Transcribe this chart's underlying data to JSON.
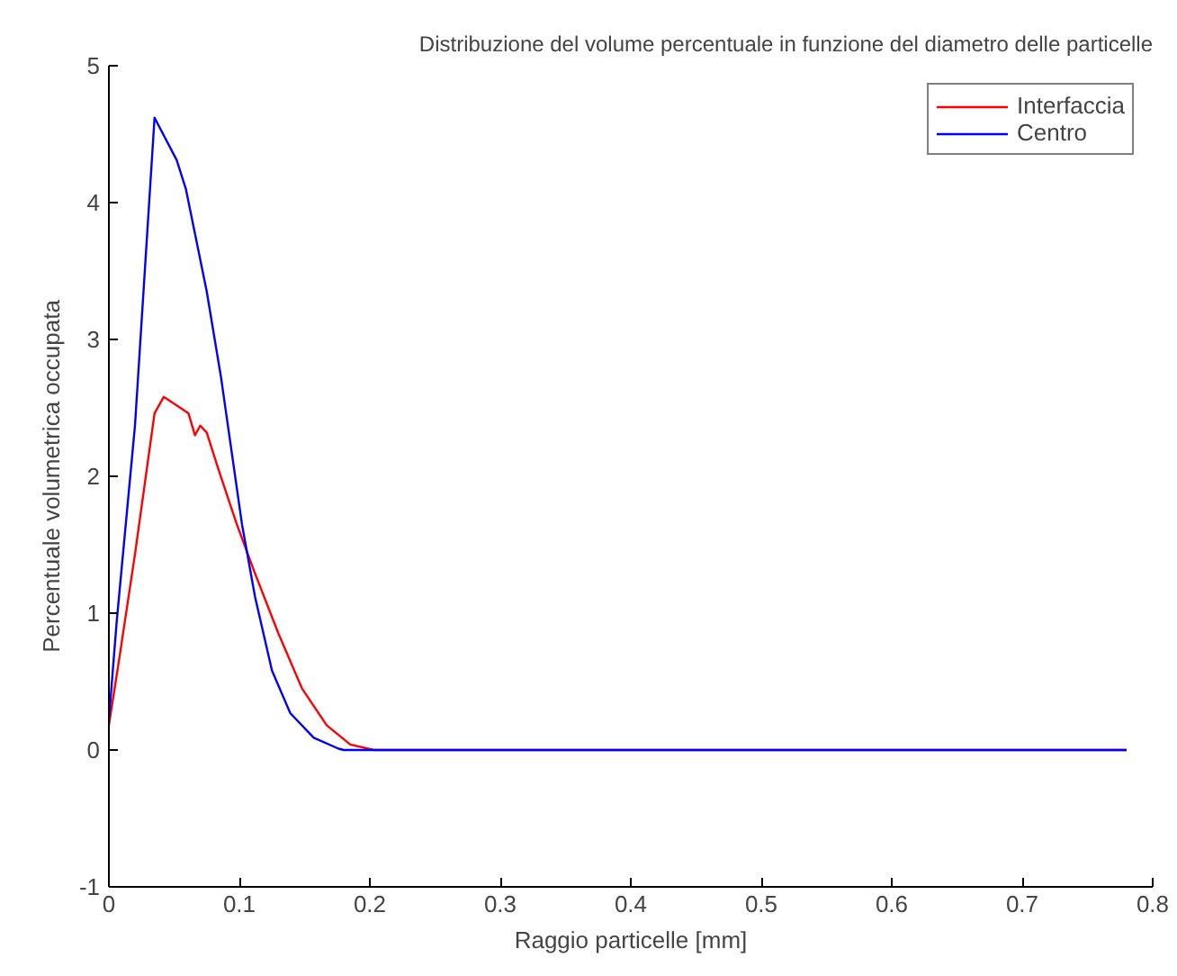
{
  "chart_data": {
    "type": "line",
    "title": "Distribuzione del volume percentuale in funzione del diametro delle particelle",
    "xlabel": "Raggio particelle [mm]",
    "ylabel": "Percentuale volumetrica occupata",
    "xlim": [
      0,
      0.8
    ],
    "ylim": [
      -1,
      5
    ],
    "xticks": [
      0,
      0.1,
      0.2,
      0.3,
      0.4,
      0.5,
      0.6,
      0.7,
      0.8
    ],
    "yticks": [
      -1,
      0,
      1,
      2,
      3,
      4,
      5
    ],
    "grid": false,
    "legend": "top right",
    "marker": "none",
    "line_style": "solid",
    "series": [
      {
        "name": "Interfaccia",
        "color": "#ff0000",
        "x": [
          0,
          0.008,
          0.02,
          0.035,
          0.042,
          0.047,
          0.061,
          0.066,
          0.07,
          0.075,
          0.084,
          0.098,
          0.112,
          0.13,
          0.148,
          0.167,
          0.185,
          0.203,
          0.78
        ],
        "values": [
          0.18,
          0.67,
          1.43,
          2.46,
          2.58,
          2.55,
          2.46,
          2.3,
          2.37,
          2.32,
          2.05,
          1.65,
          1.29,
          0.85,
          0.45,
          0.18,
          0.04,
          0,
          0
        ]
      },
      {
        "name": "Centro",
        "color": "#0000ff",
        "x": [
          0,
          0.006,
          0.02,
          0.035,
          0.052,
          0.059,
          0.075,
          0.086,
          0.102,
          0.112,
          0.125,
          0.139,
          0.157,
          0.176,
          0.18,
          0.78
        ],
        "values": [
          0.22,
          0.94,
          2.37,
          4.62,
          4.31,
          4.1,
          3.35,
          2.72,
          1.65,
          1.12,
          0.58,
          0.27,
          0.09,
          0.01,
          0,
          0
        ]
      }
    ]
  }
}
